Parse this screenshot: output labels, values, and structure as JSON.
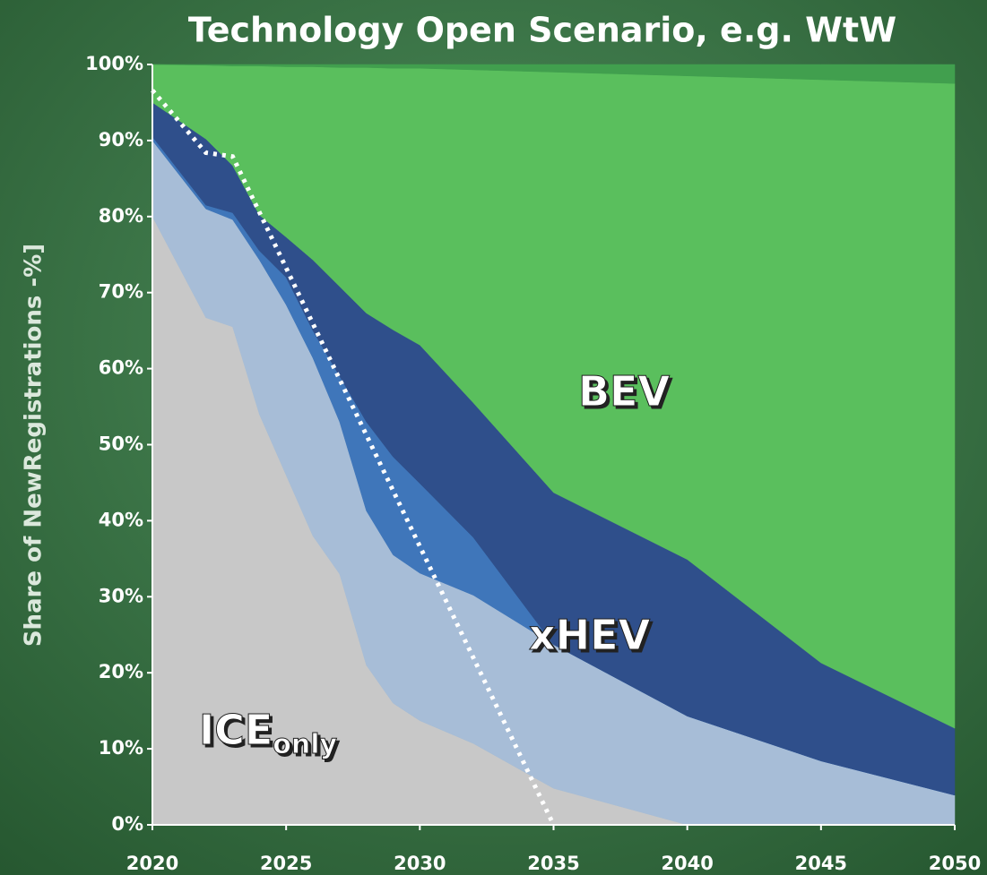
{
  "chart_data": {
    "type": "stacked_area",
    "title": "Technology Open Scenario, e.g. WtW",
    "y_label": "Share of NewRegistrations -%]",
    "x": [
      2020,
      2022,
      2023,
      2024,
      2025,
      2026,
      2027,
      2028,
      2029,
      2030,
      2032,
      2035,
      2040,
      2045,
      2050
    ],
    "series": [
      {
        "color": "#c8c8c8",
        "values": [
          80,
          66.7,
          65.5,
          54,
          46,
          38,
          33,
          21,
          16,
          13.7,
          10.7,
          4.8,
          0,
          0,
          0
        ]
      },
      {
        "color": "#a7bdd7",
        "values": [
          10,
          14.3,
          14.1,
          20.3,
          22.4,
          23.4,
          20,
          20.3,
          19.5,
          19.4,
          19.5,
          18.9,
          14.3,
          8.4,
          3.9
        ]
      },
      {
        "color": "#3f76ba",
        "values": [
          0.5,
          0.5,
          0.9,
          1.2,
          3.6,
          3.6,
          6,
          11.7,
          12.9,
          11.8,
          7.6,
          0,
          0,
          0,
          0
        ]
      },
      {
        "color": "#2f4f8b",
        "values": [
          4.5,
          8.7,
          6.2,
          4.7,
          5.3,
          9.3,
          11.8,
          14.3,
          16.7,
          18.2,
          17.7,
          20,
          20.6,
          12.9,
          8.8
        ]
      },
      {
        "color": "#5abf5d",
        "values": [
          5,
          9.7,
          13.1,
          19.6,
          22.4,
          25.4,
          28.8,
          32.3,
          34.4,
          36.4,
          43.8,
          55.3,
          63.6,
          76.7,
          84.8
        ]
      },
      {
        "color": "#419f4e",
        "values": [
          0,
          0.1,
          0.2,
          0.2,
          0.3,
          0.3,
          0.4,
          0.4,
          0.5,
          0.5,
          0.7,
          1,
          1.5,
          2,
          2.5
        ]
      }
    ],
    "target_line": {
      "color": "#ffffff",
      "x": [
        2020,
        2022,
        2023,
        2035
      ],
      "values": [
        96.6,
        88.4,
        87.9,
        0
      ]
    },
    "annotations": [
      {
        "text": "ICE",
        "sub": "only"
      },
      {
        "text": "xHEV"
      },
      {
        "text": "BEV"
      }
    ],
    "xlim": [
      2020,
      2050
    ],
    "ylim": [
      0,
      100
    ],
    "xticks": [
      2020,
      2025,
      2030,
      2035,
      2040,
      2045,
      2050
    ],
    "yticks": [
      {
        "value": 0,
        "label": "0%"
      },
      {
        "value": 10,
        "label": "10%"
      },
      {
        "value": 20,
        "label": "20%"
      },
      {
        "value": 30,
        "label": "30%"
      },
      {
        "value": 40,
        "label": "40%"
      },
      {
        "value": 50,
        "label": "50%"
      },
      {
        "value": 60,
        "label": "60%"
      },
      {
        "value": 70,
        "label": "70%"
      },
      {
        "value": 80,
        "label": "80%"
      },
      {
        "value": 90,
        "label": "90%"
      },
      {
        "value": 100,
        "label": "100%"
      }
    ]
  }
}
